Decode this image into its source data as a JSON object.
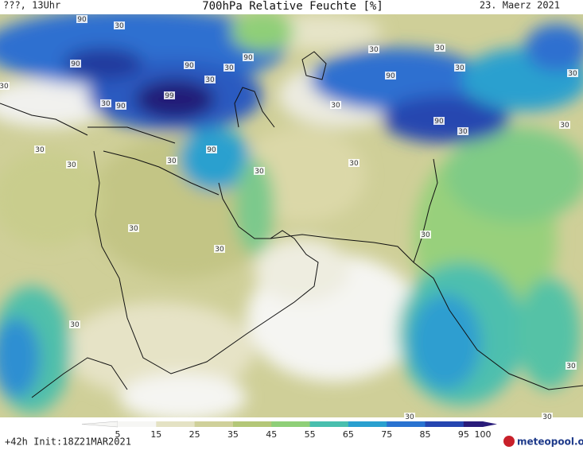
{
  "header": {
    "left": "???, 13Uhr",
    "title": "700hPa Relative Feuchte [%]",
    "date": "23. Maerz 2021"
  },
  "map": {
    "contour_labels": [
      90,
      30,
      90,
      90,
      90,
      30,
      30,
      99,
      90,
      30,
      30,
      90,
      30,
      30,
      30,
      30,
      90,
      30,
      30,
      30,
      90,
      30,
      30,
      30,
      30,
      30,
      30,
      30,
      30,
      30,
      30,
      30,
      30
    ]
  },
  "colorbar": {
    "ticks": [
      5,
      15,
      25,
      35,
      45,
      55,
      65,
      75,
      85,
      95,
      100
    ],
    "colors": [
      "#f6f6f4",
      "#e4e2c4",
      "#cfd09a",
      "#b4c778",
      "#8fcf78",
      "#49bfae",
      "#2aa0cf",
      "#2a73d0",
      "#2646b0",
      "#2a1c7a"
    ]
  },
  "footer": {
    "left": "+42h Init:18Z21MAR2021",
    "logo": "meteopool.org"
  }
}
